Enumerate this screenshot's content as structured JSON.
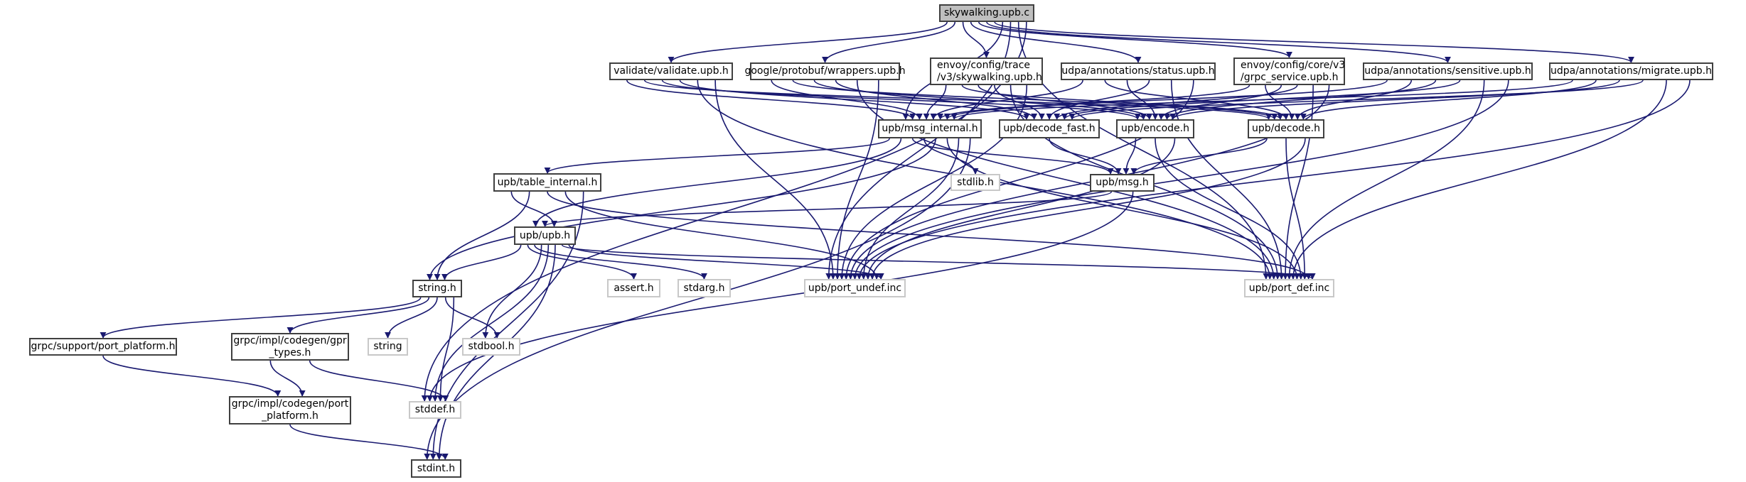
{
  "graph": {
    "edge_color": "#191970",
    "root_fill": "#bfbfbf",
    "nodes": {
      "root": "skywalking.upb.c",
      "validate": "validate/validate.upb.h",
      "wrappers": "google/protobuf/wrappers.upb.h",
      "trace": "envoy/config/trace\n/v3/skywalking.upb.h",
      "status": "udpa/annotations/status.upb.h",
      "grpc_service": "envoy/config/core/v3\n/grpc_service.upb.h",
      "sensitive": "udpa/annotations/sensitive.upb.h",
      "migrate": "udpa/annotations/migrate.upb.h",
      "msg_internal": "upb/msg_internal.h",
      "decode_fast": "upb/decode_fast.h",
      "encode": "upb/encode.h",
      "decode": "upb/decode.h",
      "stdlib": "stdlib.h",
      "msg": "upb/msg.h",
      "table_internal": "upb/table_internal.h",
      "upb": "upb/upb.h",
      "string_h": "string.h",
      "assert": "assert.h",
      "stdarg": "stdarg.h",
      "port_undef": "upb/port_undef.inc",
      "port_def": "upb/port_def.inc",
      "grpc_support": "grpc/support/port_platform.h",
      "gpr_types": "grpc/impl/codegen/gpr\n_types.h",
      "string": "string",
      "stdbool": "stdbool.h",
      "codegen_port": "grpc/impl/codegen/port\n_platform.h",
      "stddef": "stddef.h",
      "stdint": "stdint.h"
    },
    "edges": [
      [
        "root",
        "validate"
      ],
      [
        "root",
        "wrappers"
      ],
      [
        "root",
        "trace"
      ],
      [
        "root",
        "status"
      ],
      [
        "root",
        "grpc_service"
      ],
      [
        "root",
        "sensitive"
      ],
      [
        "root",
        "migrate"
      ],
      [
        "root",
        "msg_internal"
      ],
      [
        "root",
        "port_undef"
      ],
      [
        "root",
        "port_def"
      ],
      [
        "root",
        "stddef"
      ],
      [
        "validate",
        "msg_internal"
      ],
      [
        "validate",
        "decode"
      ],
      [
        "validate",
        "encode"
      ],
      [
        "validate",
        "decode_fast"
      ],
      [
        "validate",
        "port_def"
      ],
      [
        "validate",
        "port_undef"
      ],
      [
        "wrappers",
        "msg_internal"
      ],
      [
        "wrappers",
        "decode"
      ],
      [
        "wrappers",
        "encode"
      ],
      [
        "wrappers",
        "decode_fast"
      ],
      [
        "wrappers",
        "port_def"
      ],
      [
        "wrappers",
        "port_undef"
      ],
      [
        "trace",
        "msg_internal"
      ],
      [
        "trace",
        "decode"
      ],
      [
        "trace",
        "encode"
      ],
      [
        "trace",
        "decode_fast"
      ],
      [
        "trace",
        "port_def"
      ],
      [
        "trace",
        "port_undef"
      ],
      [
        "status",
        "msg_internal"
      ],
      [
        "status",
        "decode"
      ],
      [
        "status",
        "encode"
      ],
      [
        "status",
        "decode_fast"
      ],
      [
        "status",
        "port_def"
      ],
      [
        "status",
        "port_undef"
      ],
      [
        "grpc_service",
        "msg_internal"
      ],
      [
        "grpc_service",
        "decode"
      ],
      [
        "grpc_service",
        "encode"
      ],
      [
        "grpc_service",
        "decode_fast"
      ],
      [
        "grpc_service",
        "port_def"
      ],
      [
        "grpc_service",
        "port_undef"
      ],
      [
        "sensitive",
        "msg_internal"
      ],
      [
        "sensitive",
        "decode"
      ],
      [
        "sensitive",
        "encode"
      ],
      [
        "sensitive",
        "decode_fast"
      ],
      [
        "sensitive",
        "port_def"
      ],
      [
        "sensitive",
        "port_undef"
      ],
      [
        "migrate",
        "msg_internal"
      ],
      [
        "migrate",
        "decode"
      ],
      [
        "migrate",
        "encode"
      ],
      [
        "migrate",
        "decode_fast"
      ],
      [
        "migrate",
        "port_def"
      ],
      [
        "migrate",
        "port_undef"
      ],
      [
        "msg_internal",
        "table_internal"
      ],
      [
        "msg_internal",
        "upb"
      ],
      [
        "msg_internal",
        "msg"
      ],
      [
        "msg_internal",
        "stdlib"
      ],
      [
        "msg_internal",
        "string_h"
      ],
      [
        "msg_internal",
        "port_def"
      ],
      [
        "msg_internal",
        "port_undef"
      ],
      [
        "msg_internal",
        "stdint"
      ],
      [
        "decode_fast",
        "msg"
      ],
      [
        "encode",
        "msg"
      ],
      [
        "encode",
        "port_def"
      ],
      [
        "encode",
        "port_undef"
      ],
      [
        "decode",
        "msg"
      ],
      [
        "decode",
        "port_def"
      ],
      [
        "decode",
        "port_undef"
      ],
      [
        "msg",
        "upb"
      ],
      [
        "msg",
        "stddef"
      ],
      [
        "table_internal",
        "upb"
      ],
      [
        "table_internal",
        "string_h"
      ],
      [
        "table_internal",
        "port_def"
      ],
      [
        "table_internal",
        "port_undef"
      ],
      [
        "table_internal",
        "stdint"
      ],
      [
        "upb",
        "string_h"
      ],
      [
        "upb",
        "assert"
      ],
      [
        "upb",
        "stdarg"
      ],
      [
        "upb",
        "stdbool"
      ],
      [
        "upb",
        "stddef"
      ],
      [
        "upb",
        "stdint"
      ],
      [
        "upb",
        "port_def"
      ],
      [
        "upb",
        "port_undef"
      ],
      [
        "string_h",
        "grpc_support"
      ],
      [
        "string_h",
        "gpr_types"
      ],
      [
        "string_h",
        "string"
      ],
      [
        "string_h",
        "stdbool"
      ],
      [
        "string_h",
        "stddef"
      ],
      [
        "grpc_support",
        "codegen_port"
      ],
      [
        "gpr_types",
        "codegen_port"
      ],
      [
        "gpr_types",
        "stddef"
      ],
      [
        "codegen_port",
        "stdint"
      ]
    ]
  }
}
